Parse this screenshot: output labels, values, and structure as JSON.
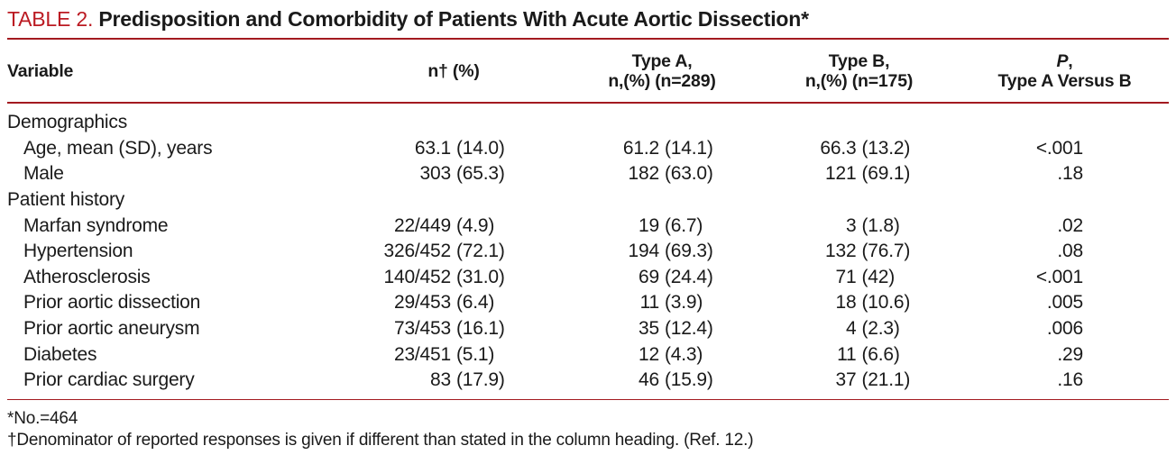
{
  "colors": {
    "accent_red_text": "#bb1a22",
    "rule_red": "#a31a20",
    "body_text": "#1a1a1a"
  },
  "title": {
    "label": "TABLE 2.",
    "caption": "Predisposition and Comorbidity of Patients With Acute Aortic Dissection*"
  },
  "table": {
    "columns": {
      "variable": "Variable",
      "n_total": "n† (%)",
      "type_a_line1": "Type A,",
      "type_a_line2": "n,(%) (n=289)",
      "type_b_line1": "Type B,",
      "type_b_line2": "n,(%) (n=175)",
      "p_italic": "P",
      "p_rest": ",",
      "p_line2": "Type A Versus B"
    },
    "rows": [
      {
        "type": "section",
        "label": "Demographics"
      },
      {
        "type": "data",
        "label": "Age, mean (SD), years",
        "n": "63.1",
        "n_pct": "(14.0)",
        "a": "61.2",
        "a_pct": "(14.1)",
        "b": "66.3",
        "b_pct": "(13.2)",
        "p": "<.001"
      },
      {
        "type": "data",
        "label": "Male",
        "n": "303",
        "n_pct": "(65.3)",
        "a": "182",
        "a_pct": "(63.0)",
        "b": "121",
        "b_pct": "(69.1)",
        "p": ".18"
      },
      {
        "type": "section",
        "label": "Patient history"
      },
      {
        "type": "data",
        "label": "Marfan syndrome",
        "n": "22/449",
        "n_pct": "(4.9)",
        "a": "19",
        "a_pct": "(6.7)",
        "b": "3",
        "b_pct": "(1.8)",
        "p": ".02"
      },
      {
        "type": "data",
        "label": "Hypertension",
        "n": "326/452",
        "n_pct": "(72.1)",
        "a": "194",
        "a_pct": "(69.3)",
        "b": "132",
        "b_pct": "(76.7)",
        "p": ".08"
      },
      {
        "type": "data",
        "label": "Atherosclerosis",
        "n": "140/452",
        "n_pct": "(31.0)",
        "a": "69",
        "a_pct": "(24.4)",
        "b": "71",
        "b_pct": "(42)",
        "p": "<.001"
      },
      {
        "type": "data",
        "label": "Prior aortic dissection",
        "n": "29/453",
        "n_pct": "(6.4)",
        "a": "11",
        "a_pct": "(3.9)",
        "b": "18",
        "b_pct": "(10.6)",
        "p": ".005"
      },
      {
        "type": "data",
        "label": "Prior aortic aneurysm",
        "n": "73/453",
        "n_pct": "(16.1)",
        "a": "35",
        "a_pct": "(12.4)",
        "b": "4",
        "b_pct": "(2.3)",
        "p": ".006"
      },
      {
        "type": "data",
        "label": "Diabetes",
        "n": "23/451",
        "n_pct": "(5.1)",
        "a": "12",
        "a_pct": "(4.3)",
        "b": "11",
        "b_pct": "(6.6)",
        "p": ".29"
      },
      {
        "type": "data",
        "label": "Prior cardiac surgery",
        "n": "83",
        "n_pct": "(17.9)",
        "a": "46",
        "a_pct": "(15.9)",
        "b": "37",
        "b_pct": "(21.1)",
        "p": ".16"
      }
    ]
  },
  "footnotes": {
    "line1": "*No.=464",
    "line2": "†Denominator of reported responses is given if different than stated in the column heading. (Ref. 12.)"
  }
}
